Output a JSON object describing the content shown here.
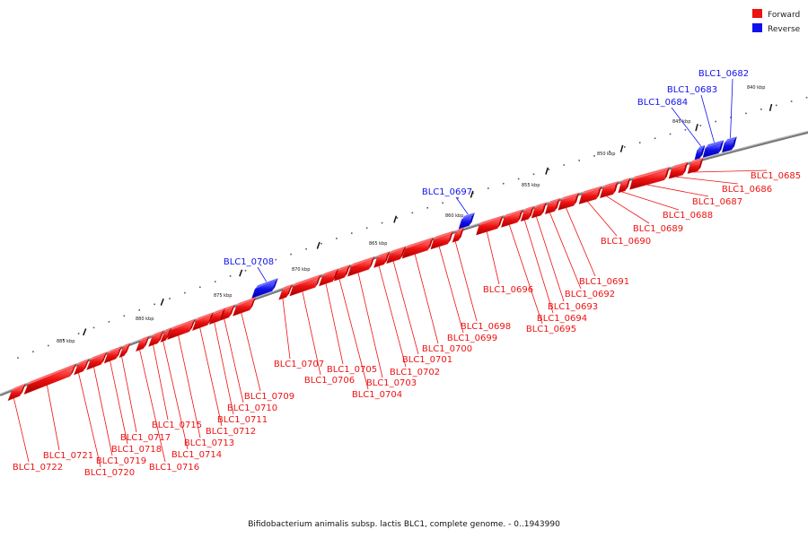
{
  "legend": {
    "forward": {
      "label": "Forward",
      "color": "#ee1111"
    },
    "reverse": {
      "label": "Reverse",
      "color": "#1111ee"
    }
  },
  "caption": "Bifidobacterium animalis subsp. lactis BLC1, complete genome. - 0..1943990",
  "scale_labels": [
    "840 kbp",
    "845 kbp",
    "850 kbp",
    "855 kbp",
    "860 kbp",
    "865 kbp",
    "870 kbp",
    "875 kbp",
    "880 kbp",
    "885 kbp"
  ],
  "genes": [
    {
      "id": "BLC1_0682",
      "strand": "reverse"
    },
    {
      "id": "BLC1_0683",
      "strand": "reverse"
    },
    {
      "id": "BLC1_0684",
      "strand": "reverse"
    },
    {
      "id": "BLC1_0685",
      "strand": "forward"
    },
    {
      "id": "BLC1_0686",
      "strand": "forward"
    },
    {
      "id": "BLC1_0687",
      "strand": "forward"
    },
    {
      "id": "BLC1_0688",
      "strand": "forward"
    },
    {
      "id": "BLC1_0689",
      "strand": "forward"
    },
    {
      "id": "BLC1_0690",
      "strand": "forward"
    },
    {
      "id": "BLC1_0691",
      "strand": "forward"
    },
    {
      "id": "BLC1_0692",
      "strand": "forward"
    },
    {
      "id": "BLC1_0693",
      "strand": "forward"
    },
    {
      "id": "BLC1_0694",
      "strand": "forward"
    },
    {
      "id": "BLC1_0695",
      "strand": "forward"
    },
    {
      "id": "BLC1_0696",
      "strand": "forward"
    },
    {
      "id": "BLC1_0697",
      "strand": "reverse"
    },
    {
      "id": "BLC1_0698",
      "strand": "forward"
    },
    {
      "id": "BLC1_0699",
      "strand": "forward"
    },
    {
      "id": "BLC1_0700",
      "strand": "forward"
    },
    {
      "id": "BLC1_0701",
      "strand": "forward"
    },
    {
      "id": "BLC1_0702",
      "strand": "forward"
    },
    {
      "id": "BLC1_0703",
      "strand": "forward"
    },
    {
      "id": "BLC1_0704",
      "strand": "forward"
    },
    {
      "id": "BLC1_0705",
      "strand": "forward"
    },
    {
      "id": "BLC1_0706",
      "strand": "forward"
    },
    {
      "id": "BLC1_0707",
      "strand": "forward"
    },
    {
      "id": "BLC1_0708",
      "strand": "reverse"
    },
    {
      "id": "BLC1_0709",
      "strand": "forward"
    },
    {
      "id": "BLC1_0710",
      "strand": "forward"
    },
    {
      "id": "BLC1_0711",
      "strand": "forward"
    },
    {
      "id": "BLC1_0712",
      "strand": "forward"
    },
    {
      "id": "BLC1_0713",
      "strand": "forward"
    },
    {
      "id": "BLC1_0714",
      "strand": "forward"
    },
    {
      "id": "BLC1_0715",
      "strand": "forward"
    },
    {
      "id": "BLC1_0716",
      "strand": "forward"
    },
    {
      "id": "BLC1_0717",
      "strand": "forward"
    },
    {
      "id": "BLC1_0718",
      "strand": "forward"
    },
    {
      "id": "BLC1_0719",
      "strand": "forward"
    },
    {
      "id": "BLC1_0720",
      "strand": "forward"
    },
    {
      "id": "BLC1_0721",
      "strand": "forward"
    },
    {
      "id": "BLC1_0722",
      "strand": "forward"
    }
  ]
}
